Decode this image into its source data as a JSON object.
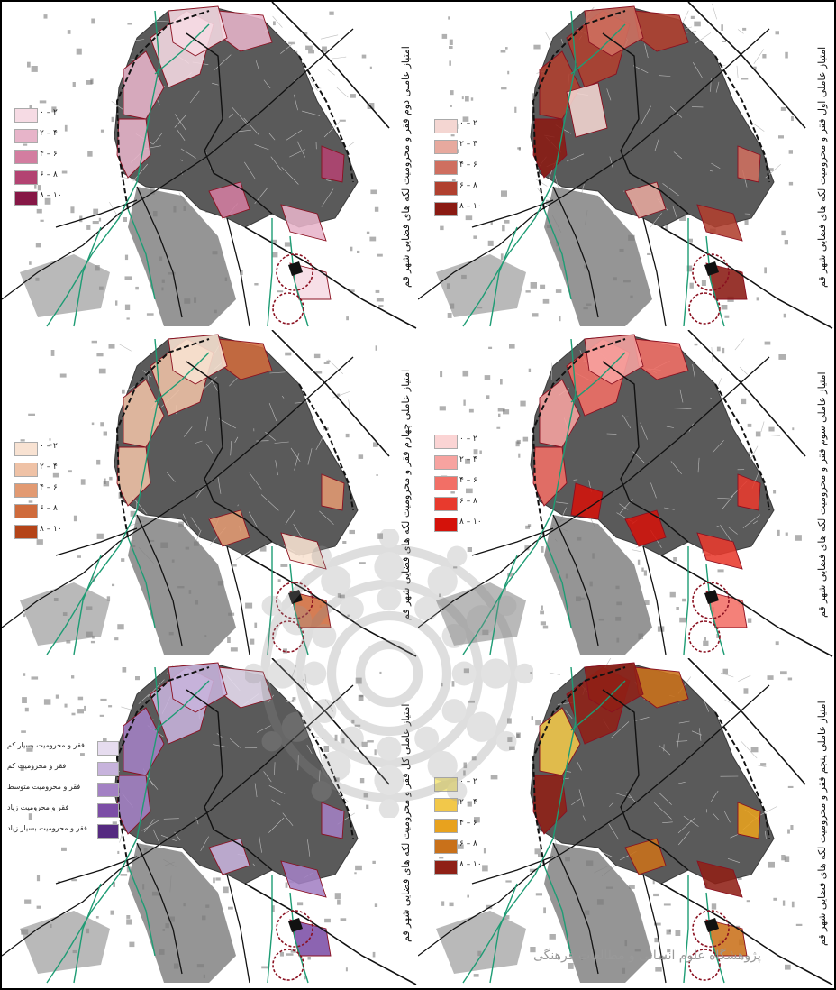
{
  "panels": [
    {
      "title": "امتیاز عاملی اول فقر و محرومیت لکه های فضایی شهر قم",
      "legend": [
        "۰ – ۲",
        "۲ – ۴",
        "۴ – ۶",
        "۶ – ۸",
        "۸ – ۱۰"
      ],
      "colors": [
        "#f4d6d2",
        "#e7a99e",
        "#cf6f60",
        "#b0402f",
        "#8a1a12"
      ]
    },
    {
      "title": "امتیاز عاملی دوم فقر و محرومیت لکه های فضایی شهر قم",
      "legend": [
        "۰ – ۲",
        "۲ – ۴",
        "۴ – ۶",
        "۶ – ۸",
        "۸ – ۱۰"
      ],
      "colors": [
        "#f6dbe4",
        "#e7b4c9",
        "#d37da0",
        "#b34372",
        "#861746"
      ]
    },
    {
      "title": "امتیاز عاملی سوم فقر و محرومیت لکه های فضایی شهر قم",
      "legend": [
        "۰ – ۲",
        "۲ – ۴",
        "۴ – ۶",
        "۶ – ۸",
        "۸ – ۱۰"
      ],
      "colors": [
        "#fbd4d4",
        "#f7a3a0",
        "#f26f66",
        "#e83a2d",
        "#d4120a"
      ]
    },
    {
      "title": "امتیاز عاملی چهارم فقر و محرومیت لکه های فضایی شهر قم",
      "legend": [
        "۰ – ۲",
        "۲ – ۴",
        "۴ – ۶",
        "۶ – ۸",
        "۸ – ۱۰"
      ],
      "colors": [
        "#f8e2d2",
        "#efc2a6",
        "#e29a72",
        "#cf6b3c",
        "#b44418"
      ]
    },
    {
      "title": "امتیاز عاملی پنجم فقر و محرومیت لکه های فضایی شهر قم",
      "legend": [
        "۰ – ۲",
        "۲ – ۴",
        "۴ – ۶",
        "۶ – ۸",
        "۸ – ۱۰"
      ],
      "colors": [
        "#f5e88a",
        "#f2c84a",
        "#e8a21e",
        "#c9711a",
        "#8f2016"
      ]
    },
    {
      "title": "امتیاز عاملی کل فقر و محرومیت لکه های فضایی شهر قم",
      "legend": [
        "فقر و محرومیت بسیار کم",
        "فقر و محرومیت کم",
        "فقر و محرومیت متوسط",
        "فقر و محرومیت زیاد",
        "فقر و محرومیت بسیار زیاد"
      ],
      "colors": [
        "#e6dcef",
        "#c7b3dc",
        "#a381c4",
        "#7c4ea6",
        "#552a80"
      ]
    }
  ],
  "watermark_text": "پژوهشگاه علوم انسانی و مطالعات فرهنگی"
}
